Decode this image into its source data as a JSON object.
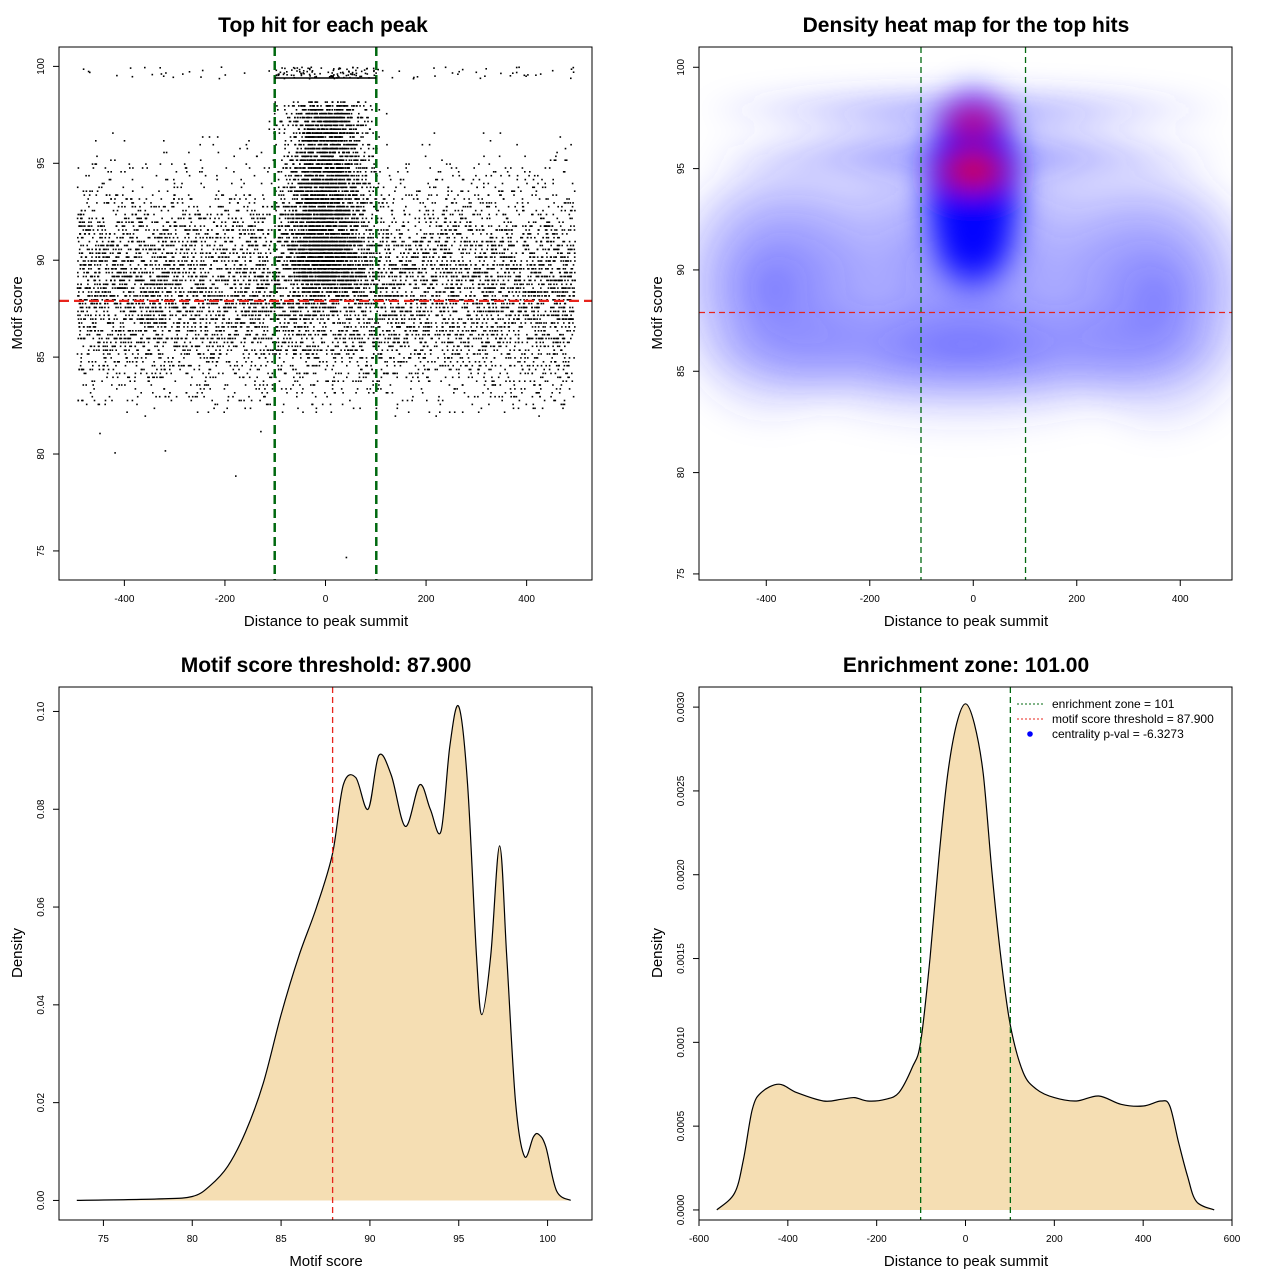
{
  "chart_data": [
    {
      "id": "scatter",
      "type": "scatter",
      "title": "Top hit for each peak",
      "xlabel": "Distance to peak summit",
      "ylabel": "Motif score",
      "xlim": [
        -530,
        530
      ],
      "ylim": [
        73.5,
        101
      ],
      "xticks": [
        -400,
        -200,
        0,
        200,
        400
      ],
      "xtick_labels": [
        "-400",
        "-200",
        "0",
        "200",
        "400"
      ],
      "yticks": [
        75,
        80,
        85,
        90,
        95,
        100
      ],
      "ytick_labels": [
        "75",
        "80",
        "85",
        "90",
        "95",
        "100"
      ],
      "threshold_line": {
        "axis": "y",
        "value": 87.9,
        "color": "#e8241c",
        "style": "dashed"
      },
      "zone_lines": {
        "axis": "x",
        "values": [
          -101,
          101
        ],
        "color": "#00690f",
        "style": "dashed"
      },
      "point_color": "#000000",
      "n_points": 12000,
      "point_distribution": "dense uniform cloud over x -500..500, y ~82..98, strongly concentrated near x = 0 with y 88..98; sparse hits at y ~99.5..100; isolated outliers below 82"
    },
    {
      "id": "heatmap",
      "type": "heatmap",
      "title": "Density heat map for the top hits",
      "xlabel": "Distance to peak summit",
      "ylabel": "Motif score",
      "xlim": [
        -530,
        500
      ],
      "ylim": [
        74.7,
        101
      ],
      "xticks": [
        -400,
        -200,
        0,
        200,
        400
      ],
      "xtick_labels": [
        "-400",
        "-200",
        "0",
        "200",
        "400"
      ],
      "yticks": [
        75,
        80,
        85,
        90,
        95,
        100
      ],
      "ytick_labels": [
        "75",
        "80",
        "85",
        "90",
        "95",
        "100"
      ],
      "threshold_line": {
        "axis": "y",
        "value": 87.9,
        "color": "#e8241c",
        "style": "dashed"
      },
      "zone_lines": {
        "axis": "x",
        "values": [
          -101,
          101
        ],
        "color": "#00690f",
        "style": "dashed"
      },
      "color_scale": [
        "#ffffff",
        "#0000ff",
        "#ff0000"
      ],
      "density_peaks": [
        {
          "x": 0,
          "y": 94.9,
          "level": "highest"
        },
        {
          "x": 0,
          "y": 97.3,
          "level": "high"
        },
        {
          "x": 0,
          "y": 92.8,
          "level": "medium"
        },
        {
          "x": 0,
          "y": 91.0,
          "level": "medium"
        }
      ]
    },
    {
      "id": "score-density",
      "type": "area",
      "title": "Motif score threshold: 87.900",
      "xlabel": "Motif score",
      "ylabel": "Density",
      "xlim": [
        72.5,
        102.5
      ],
      "ylim": [
        -0.004,
        0.105
      ],
      "xticks": [
        75,
        80,
        85,
        90,
        95,
        100
      ],
      "xtick_labels": [
        "75",
        "80",
        "85",
        "90",
        "95",
        "100"
      ],
      "yticks": [
        0,
        0.02,
        0.04,
        0.06,
        0.08,
        0.1
      ],
      "ytick_labels": [
        "0.00",
        "0.02",
        "0.04",
        "0.06",
        "0.08",
        "0.10"
      ],
      "fill_color": "#f5deb3",
      "x": [
        73.5,
        78,
        80,
        81,
        82,
        83,
        84,
        85,
        86,
        87,
        87.9,
        88.5,
        89.2,
        89.9,
        90.5,
        91.2,
        92,
        92.8,
        93.4,
        94,
        94.5,
        95,
        95.5,
        96,
        96.3,
        96.8,
        97.3,
        97.7,
        98.2,
        98.7,
        99.2,
        99.5,
        99.9,
        100.5,
        101.3
      ],
      "y": [
        0,
        0.0003,
        0.0008,
        0.003,
        0.007,
        0.014,
        0.024,
        0.038,
        0.05,
        0.06,
        0.071,
        0.085,
        0.0865,
        0.08,
        0.091,
        0.087,
        0.0765,
        0.085,
        0.08,
        0.0755,
        0.093,
        0.101,
        0.085,
        0.05,
        0.038,
        0.05,
        0.0725,
        0.05,
        0.02,
        0.009,
        0.013,
        0.0135,
        0.011,
        0.002,
        0
      ],
      "threshold_line": {
        "axis": "x",
        "value": 87.9,
        "color": "#e8241c",
        "style": "dashed"
      }
    },
    {
      "id": "distance-density",
      "type": "area",
      "title": "Enrichment zone: 101.00",
      "xlabel": "Distance to peak summit",
      "ylabel": "Density",
      "xlim": [
        -600,
        600
      ],
      "ylim": [
        -6e-05,
        0.00312
      ],
      "xticks": [
        -600,
        -400,
        -200,
        0,
        200,
        400,
        600
      ],
      "xtick_labels": [
        "-600",
        "-400",
        "-200",
        "0",
        "200",
        "400",
        "600"
      ],
      "yticks": [
        0,
        0.0005,
        0.001,
        0.0015,
        0.002,
        0.0025,
        0.003
      ],
      "ytick_labels": [
        "0.0000",
        "0.0005",
        "0.0010",
        "0.0015",
        "0.0020",
        "0.0025",
        "0.0030"
      ],
      "fill_color": "#f5deb3",
      "x": [
        -560,
        -520,
        -500,
        -480,
        -460,
        -420,
        -380,
        -320,
        -280,
        -250,
        -220,
        -180,
        -150,
        -120,
        -101,
        -80,
        -60,
        -40,
        -20,
        0,
        20,
        40,
        60,
        80,
        101,
        130,
        160,
        200,
        250,
        300,
        350,
        400,
        440,
        460,
        480,
        500,
        520,
        560
      ],
      "y": [
        0,
        0.0001,
        0.0003,
        0.0006,
        0.0007,
        0.00075,
        0.0007,
        0.00065,
        0.00066,
        0.00067,
        0.00065,
        0.00066,
        0.0007,
        0.00085,
        0.001,
        0.0015,
        0.0021,
        0.0026,
        0.0029,
        0.00302,
        0.0029,
        0.0026,
        0.002,
        0.0015,
        0.0011,
        0.00082,
        0.00072,
        0.00067,
        0.00065,
        0.00068,
        0.00063,
        0.00062,
        0.00065,
        0.00062,
        0.0004,
        0.0002,
        5e-05,
        0
      ],
      "zone_lines": {
        "axis": "x",
        "values": [
          -101,
          101
        ],
        "color": "#00690f",
        "style": "dashed"
      },
      "legend": {
        "placement": "top-right",
        "entries": [
          {
            "label": "enrichment zone = 101",
            "color": "#00690f",
            "kind": "dotted-line"
          },
          {
            "label": "motif score threshold = 87.900",
            "color": "#e8241c",
            "kind": "dotted-line"
          },
          {
            "label": "centrality p-val = -6.3273",
            "color": "#0000ff",
            "kind": "point"
          }
        ]
      }
    }
  ]
}
